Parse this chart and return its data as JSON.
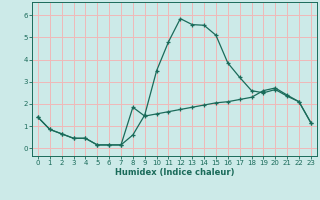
{
  "xlabel": "Humidex (Indice chaleur)",
  "bg_color": "#cceae8",
  "grid_color": "#f0b8b8",
  "line_color": "#1a6b5a",
  "xlim": [
    -0.5,
    23.5
  ],
  "ylim": [
    -0.35,
    6.6
  ],
  "xticks": [
    0,
    1,
    2,
    3,
    4,
    5,
    6,
    7,
    8,
    9,
    10,
    11,
    12,
    13,
    14,
    15,
    16,
    17,
    18,
    19,
    20,
    21,
    22,
    23
  ],
  "yticks": [
    0,
    1,
    2,
    3,
    4,
    5,
    6
  ],
  "curve1_x": [
    0,
    1,
    2,
    3,
    4,
    5,
    6,
    7,
    8,
    9,
    10,
    11,
    12,
    13,
    14,
    15,
    16,
    17,
    18,
    19,
    20,
    21,
    22,
    23
  ],
  "curve1_y": [
    1.4,
    0.85,
    0.65,
    0.45,
    0.45,
    0.15,
    0.15,
    0.15,
    1.85,
    1.45,
    1.55,
    1.65,
    1.75,
    1.85,
    1.95,
    2.05,
    2.1,
    2.2,
    2.3,
    2.6,
    2.72,
    2.4,
    2.1,
    1.15
  ],
  "curve2_x": [
    0,
    1,
    2,
    3,
    4,
    5,
    6,
    7,
    8,
    9,
    10,
    11,
    12,
    13,
    14,
    15,
    16,
    17,
    18,
    19,
    20,
    21,
    22,
    23
  ],
  "curve2_y": [
    1.4,
    0.85,
    0.65,
    0.45,
    0.45,
    0.15,
    0.15,
    0.15,
    0.6,
    1.5,
    3.5,
    4.8,
    5.85,
    5.58,
    5.55,
    5.1,
    3.85,
    3.2,
    2.6,
    2.5,
    2.65,
    2.35,
    2.1,
    1.15
  ]
}
